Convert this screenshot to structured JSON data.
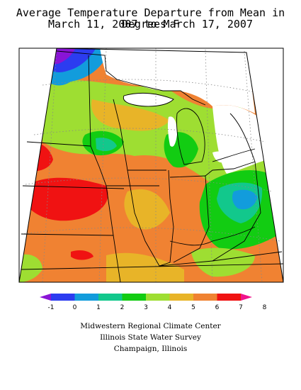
{
  "title": {
    "line1": "Average Temperature Departure from Mean in Degrees F",
    "line2": "March 11, 2007 to March 17, 2007"
  },
  "legend": {
    "ticks": [
      "-1",
      "0",
      "1",
      "2",
      "3",
      "4",
      "5",
      "6",
      "7",
      "8"
    ],
    "colors": [
      "#8a14d6",
      "#2c3cf0",
      "#129cdc",
      "#12c88c",
      "#12cc12",
      "#9ede32",
      "#e8b428",
      "#f08232",
      "#f01212",
      "#f0148c"
    ]
  },
  "credits": {
    "line1": "Midwestern Regional Climate Center",
    "line2": "Illinois State Water Survey",
    "line3": "Champaign, Illinois"
  }
}
